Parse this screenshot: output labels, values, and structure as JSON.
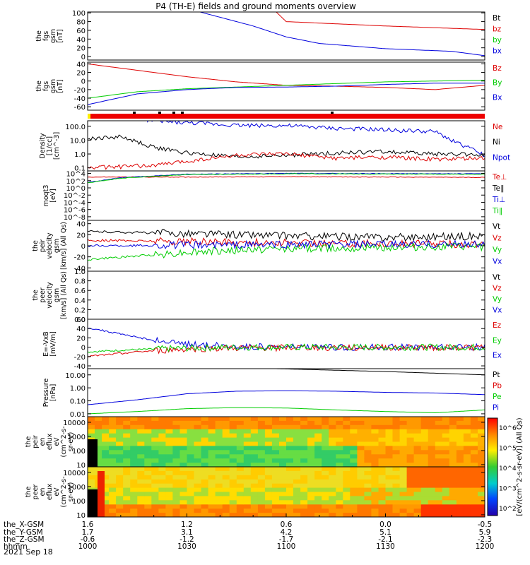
{
  "title": "P4 (TH-E) fields and ground moments overview",
  "date_label": "2021 Sep 18",
  "colors": {
    "black": "#000000",
    "red": "#dd0000",
    "green": "#00cc00",
    "blue": "#0000dd",
    "bar_red": "#ee0000",
    "bar_yellow": "#ffee00"
  },
  "colorbar_label": "[eV/(cm^2-s-sr-eV)] (All Qs)",
  "colorbar_ticks": [
    "10^6",
    "10^5",
    "10^4",
    "10^3",
    "10^2"
  ],
  "xaxis": {
    "row_labels": [
      "the_X-GSM",
      "the_Y-GSM",
      "the_Z-GSM",
      "hhmm"
    ],
    "columns": [
      {
        "x": "1.6",
        "y": "1.7",
        "z": "-0.6",
        "t": "1000"
      },
      {
        "x": "1.2",
        "y": "3.1",
        "z": "-1.2",
        "t": "1030"
      },
      {
        "x": "0.6",
        "y": "4.2",
        "z": "-1.7",
        "t": "1100"
      },
      {
        "x": "0.0",
        "y": "5.1",
        "z": "-2.1",
        "t": "1130"
      },
      {
        "x": "-0.5",
        "y": "5.9",
        "z": "-2.3",
        "t": "1200"
      }
    ]
  },
  "chart_data": [
    {
      "type": "line",
      "ylabel": [
        "the",
        "fgs",
        "gsm",
        "[nT]"
      ],
      "yticks": [
        "100",
        "80",
        "60",
        "40",
        "20",
        "0"
      ],
      "ylim": [
        -8,
        102
      ],
      "legend": [
        {
          "name": "Bt",
          "color": "#000000"
        },
        {
          "name": "bz",
          "color": "#dd0000"
        },
        {
          "name": "by",
          "color": "#00cc00"
        },
        {
          "name": "bx",
          "color": "#0000dd"
        }
      ],
      "series": [
        {
          "name": "bz",
          "color": "#dd0000",
          "x": [
            1057,
            1100,
            1130,
            1200
          ],
          "y": [
            102,
            80,
            70,
            62
          ]
        },
        {
          "name": "bx",
          "color": "#0000dd",
          "x": [
            1034,
            1040,
            1050,
            1100,
            1110,
            1130,
            1150,
            1200
          ],
          "y": [
            102,
            90,
            70,
            45,
            30,
            18,
            12,
            2
          ]
        }
      ]
    },
    {
      "type": "line",
      "ylabel": [
        "the",
        "fgs",
        "gsm",
        "[nT]"
      ],
      "yticks": [
        "40",
        "20",
        "0",
        "-20",
        "-40",
        "-60"
      ],
      "ylim": [
        -68,
        44
      ],
      "legend": [
        {
          "name": "Bz",
          "color": "#dd0000"
        },
        {
          "name": "By",
          "color": "#00cc00"
        },
        {
          "name": "Bx",
          "color": "#0000dd"
        }
      ],
      "series": [
        {
          "name": "Bz",
          "color": "#dd0000",
          "x": [
            1000,
            1015,
            1030,
            1045,
            1100,
            1115,
            1130,
            1145,
            1200
          ],
          "y": [
            40,
            25,
            10,
            -2,
            -10,
            -12,
            -15,
            -20,
            -10
          ]
        },
        {
          "name": "By",
          "color": "#00cc00",
          "x": [
            1000,
            1015,
            1030,
            1045,
            1100,
            1115,
            1130,
            1145,
            1200
          ],
          "y": [
            -40,
            -25,
            -18,
            -14,
            -10,
            -6,
            -2,
            0,
            2
          ]
        },
        {
          "name": "Bx",
          "color": "#0000dd",
          "x": [
            1000,
            1015,
            1030,
            1045,
            1100,
            1115,
            1130,
            1145,
            1200
          ],
          "y": [
            -55,
            -30,
            -20,
            -15,
            -14,
            -12,
            -8,
            -5,
            -5
          ]
        }
      ]
    },
    {
      "type": "line",
      "ylabel": [
        "Density",
        "[1/cc]",
        "[cm^-3]"
      ],
      "yticks": [
        "100.0",
        "10.0",
        "1.0",
        "0.1"
      ],
      "ylim": [
        0.06,
        250
      ],
      "yscale": "log",
      "legend": [
        {
          "name": "Ne",
          "color": "#dd0000"
        },
        {
          "name": "Ni",
          "color": "#000000"
        },
        {
          "name": "Npot",
          "color": "#0000dd"
        }
      ],
      "series": [
        {
          "name": "Npot",
          "color": "#0000dd",
          "x": [
            1018,
            1030,
            1045,
            1100,
            1115,
            1130,
            1145,
            1150,
            1200
          ],
          "y": [
            250,
            180,
            120,
            110,
            70,
            55,
            40,
            10,
            0.8
          ]
        },
        {
          "name": "Ni",
          "color": "#000000",
          "x": [
            1000,
            1010,
            1020,
            1030,
            1045,
            1100,
            1115,
            1130,
            1145,
            1200
          ],
          "y": [
            12,
            18,
            3,
            1.2,
            0.6,
            0.8,
            1.2,
            1.5,
            1.0,
            0.9
          ]
        },
        {
          "name": "Ne",
          "color": "#dd0000",
          "x": [
            1000,
            1010,
            1020,
            1030,
            1045,
            1100,
            1115,
            1130,
            1145,
            1200
          ],
          "y": [
            0.1,
            0.12,
            0.15,
            0.3,
            0.8,
            1.0,
            0.5,
            0.6,
            0.4,
            0.5
          ]
        }
      ]
    },
    {
      "type": "line",
      "ylabel": [
        "moqt3",
        "[eV]"
      ],
      "yticks": [
        "10^4",
        "10^2",
        "10^0",
        "10^-2",
        "10^-4",
        "10^-6",
        "10^-8"
      ],
      "ylim": [
        -9,
        4.7
      ],
      "legend": [
        {
          "name": "Te⊥",
          "color": "#dd0000"
        },
        {
          "name": "Te∥",
          "color": "#000000"
        },
        {
          "name": "Ti⊥",
          "color": "#0000dd"
        },
        {
          "name": "Ti∥",
          "color": "#00cc00"
        }
      ],
      "series": [
        {
          "name": "Te",
          "color": "#dd0000",
          "x": [
            1000,
            1030,
            1100,
            1130,
            1200
          ],
          "y": [
            3.0,
            3.0,
            3.1,
            3.0,
            2.9
          ]
        },
        {
          "name": "Ti",
          "color": "#0000dd",
          "x": [
            1000,
            1010,
            1030,
            1100,
            1200
          ],
          "y": [
            1.5,
            2.8,
            3.8,
            4.0,
            3.9
          ]
        },
        {
          "name": "Ti",
          "color": "#00cc00",
          "x": [
            1000,
            1010,
            1030,
            1100,
            1200
          ],
          "y": [
            1.4,
            2.7,
            3.7,
            3.9,
            3.8
          ]
        }
      ]
    },
    {
      "type": "line",
      "ylabel": [
        "the",
        "peir",
        "velocity",
        "gsm",
        "[km/s] (All Qs)"
      ],
      "yticks": [
        "40",
        "20",
        "0",
        "-20",
        "-40"
      ],
      "ylim": [
        -46,
        46
      ],
      "legend": [
        {
          "name": "Vt",
          "color": "#000000"
        },
        {
          "name": "Vz",
          "color": "#dd0000"
        },
        {
          "name": "Vy",
          "color": "#00cc00"
        },
        {
          "name": "Vx",
          "color": "#0000dd"
        }
      ],
      "series": [
        {
          "name": "Vt",
          "color": "#000000",
          "x": [
            1000,
            1030,
            1100,
            1130,
            1200
          ],
          "y": [
            26,
            22,
            18,
            15,
            18
          ]
        },
        {
          "name": "Vz",
          "color": "#dd0000",
          "x": [
            1000,
            1030,
            1100,
            1130,
            1200
          ],
          "y": [
            10,
            8,
            5,
            4,
            3
          ]
        },
        {
          "name": "Vy",
          "color": "#00cc00",
          "x": [
            1000,
            1030,
            1100,
            1130,
            1200
          ],
          "y": [
            -25,
            -12,
            -5,
            -3,
            -2
          ]
        },
        {
          "name": "Vx",
          "color": "#0000dd",
          "x": [
            1000,
            1030,
            1100,
            1130,
            1200
          ],
          "y": [
            0,
            1,
            2,
            2,
            3
          ]
        }
      ]
    },
    {
      "type": "line",
      "ylabel": [
        "the",
        "peer",
        "velocity",
        "gsm",
        "[km/s] (All Qs)"
      ],
      "yticks": [
        "1.0",
        "0.8",
        "0.6",
        "0.4",
        "0.2",
        "0.0"
      ],
      "ylim": [
        0,
        1
      ],
      "legend": [
        {
          "name": "Vt",
          "color": "#000000"
        },
        {
          "name": "Vz",
          "color": "#dd0000"
        },
        {
          "name": "Vy",
          "color": "#00cc00"
        },
        {
          "name": "Vx",
          "color": "#0000dd"
        }
      ],
      "series": []
    },
    {
      "type": "line",
      "ylabel": [
        "E=-VxB",
        "[mV/m]"
      ],
      "yticks": [
        "60",
        "40",
        "20",
        "0",
        "-20",
        "-40"
      ],
      "ylim": [
        -46,
        60
      ],
      "legend": [
        {
          "name": "Ez",
          "color": "#dd0000"
        },
        {
          "name": "Ey",
          "color": "#00cc00"
        },
        {
          "name": "Ex",
          "color": "#0000dd"
        }
      ],
      "series": [
        {
          "name": "Ex",
          "color": "#0000dd",
          "x": [
            1000,
            1010,
            1020,
            1030,
            1045,
            1100,
            1200
          ],
          "y": [
            42,
            28,
            15,
            6,
            2,
            0,
            0
          ]
        },
        {
          "name": "Ez",
          "color": "#dd0000",
          "x": [
            1000,
            1015,
            1030,
            1045,
            1100,
            1200
          ],
          "y": [
            -20,
            -10,
            -4,
            -2,
            -1,
            0
          ]
        },
        {
          "name": "Ey",
          "color": "#00cc00",
          "x": [
            1000,
            1015,
            1030,
            1045,
            1100,
            1200
          ],
          "y": [
            -10,
            -5,
            -2,
            0,
            0,
            0
          ]
        }
      ]
    },
    {
      "type": "line",
      "ylabel": [
        "Pressure",
        "[nPa]"
      ],
      "yticks": [
        "10.00",
        "1.00",
        "0.10",
        "0.01"
      ],
      "ylim": [
        0.006,
        30
      ],
      "yscale": "log",
      "legend": [
        {
          "name": "Pt",
          "color": "#000000"
        },
        {
          "name": "Pb",
          "color": "#dd0000"
        },
        {
          "name": "Pe",
          "color": "#00cc00"
        },
        {
          "name": "Pi",
          "color": "#0000dd"
        }
      ],
      "series": [
        {
          "name": "Pt",
          "color": "#000000",
          "x": [
            1057,
            1130,
            1200
          ],
          "y": [
            30,
            18,
            10
          ]
        },
        {
          "name": "Pi",
          "color": "#0000dd",
          "x": [
            1000,
            1015,
            1030,
            1045,
            1100,
            1115,
            1130,
            1145,
            1200
          ],
          "y": [
            0.05,
            0.12,
            0.35,
            0.55,
            0.6,
            0.55,
            0.45,
            0.4,
            0.3
          ]
        },
        {
          "name": "Pe",
          "color": "#00cc00",
          "x": [
            1000,
            1015,
            1030,
            1045,
            1100,
            1115,
            1130,
            1145,
            1200
          ],
          "y": [
            0.01,
            0.015,
            0.025,
            0.03,
            0.028,
            0.02,
            0.015,
            0.012,
            0.02
          ]
        }
      ]
    },
    {
      "type": "heatmap",
      "ylabel": [
        "the",
        "peir",
        "en",
        "eflux",
        "eV",
        "(cm^2-s-",
        "sr-eV)"
      ],
      "yticks": [
        "10000",
        "1000",
        "100",
        "10"
      ],
      "ylim": [
        7,
        25000
      ],
      "yscale": "log"
    },
    {
      "type": "heatmap",
      "ylabel": [
        "the",
        "peer",
        "en",
        "eflux",
        "eV",
        "(cm^2-s-",
        "sr-eV)"
      ],
      "yticks": [
        "10000",
        "1000",
        "100",
        "10"
      ],
      "ylim": [
        7,
        25000
      ],
      "yscale": "log"
    }
  ]
}
